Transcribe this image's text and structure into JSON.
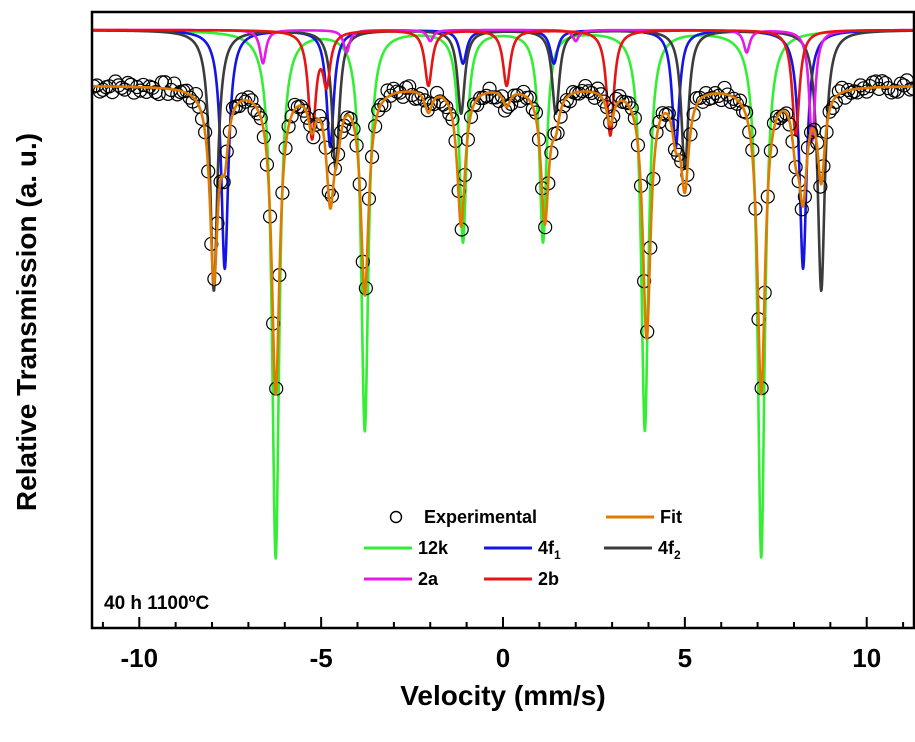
{
  "chart_data": {
    "type": "line",
    "xlabel": "Velocity (mm/s)",
    "ylabel": "Relative Transmission (a. u.)",
    "xlim": [
      -11.3,
      11.3
    ],
    "ylim": [
      0.0,
      1.0
    ],
    "x_ticks": [
      -10,
      -5,
      0,
      5,
      10
    ],
    "x_tick_labels": [
      "-10",
      "-5",
      "0",
      "5",
      "10"
    ],
    "y_ticks_labeled": false,
    "grid": false,
    "legend_position": "bottom-center",
    "annotation": "40 h  1100ºC",
    "series": [
      {
        "name": "Experimental",
        "style": "open-circle-markers",
        "color": "#000000",
        "baseline": 0.9,
        "noise": 0.012,
        "peaks": [
          {
            "x": -7.95,
            "depth": 0.34,
            "w": 0.13
          },
          {
            "x": -7.65,
            "depth": 0.1,
            "w": 0.12
          },
          {
            "x": -6.25,
            "depth": 0.55,
            "w": 0.13
          },
          {
            "x": -5.25,
            "depth": 0.06,
            "w": 0.12
          },
          {
            "x": -4.75,
            "depth": 0.19,
            "w": 0.13
          },
          {
            "x": -4.55,
            "depth": 0.06,
            "w": 0.12
          },
          {
            "x": -3.8,
            "depth": 0.37,
            "w": 0.13
          },
          {
            "x": -2.05,
            "depth": 0.04,
            "w": 0.12
          },
          {
            "x": -1.15,
            "depth": 0.25,
            "w": 0.13
          },
          {
            "x": 0.1,
            "depth": 0.03,
            "w": 0.12
          },
          {
            "x": 1.15,
            "depth": 0.24,
            "w": 0.13
          },
          {
            "x": 1.45,
            "depth": 0.05,
            "w": 0.12
          },
          {
            "x": 2.95,
            "depth": 0.06,
            "w": 0.12
          },
          {
            "x": 3.95,
            "depth": 0.45,
            "w": 0.13
          },
          {
            "x": 4.75,
            "depth": 0.07,
            "w": 0.12
          },
          {
            "x": 5.0,
            "depth": 0.17,
            "w": 0.13
          },
          {
            "x": 7.1,
            "depth": 0.55,
            "w": 0.13
          },
          {
            "x": 8.05,
            "depth": 0.08,
            "w": 0.12
          },
          {
            "x": 8.25,
            "depth": 0.18,
            "w": 0.13
          },
          {
            "x": 8.75,
            "depth": 0.16,
            "w": 0.12
          }
        ]
      },
      {
        "name": "Fit",
        "style": "line",
        "color": "#E07B00",
        "baseline": 0.9,
        "peaks": [
          {
            "x": -7.95,
            "depth": 0.34,
            "w": 0.13
          },
          {
            "x": -7.65,
            "depth": 0.1,
            "w": 0.12
          },
          {
            "x": -6.25,
            "depth": 0.55,
            "w": 0.13
          },
          {
            "x": -5.25,
            "depth": 0.06,
            "w": 0.12
          },
          {
            "x": -4.75,
            "depth": 0.19,
            "w": 0.13
          },
          {
            "x": -4.55,
            "depth": 0.06,
            "w": 0.12
          },
          {
            "x": -3.8,
            "depth": 0.37,
            "w": 0.13
          },
          {
            "x": -2.05,
            "depth": 0.04,
            "w": 0.12
          },
          {
            "x": -1.15,
            "depth": 0.25,
            "w": 0.13
          },
          {
            "x": 0.1,
            "depth": 0.03,
            "w": 0.12
          },
          {
            "x": 1.15,
            "depth": 0.24,
            "w": 0.13
          },
          {
            "x": 1.45,
            "depth": 0.05,
            "w": 0.12
          },
          {
            "x": 2.95,
            "depth": 0.06,
            "w": 0.12
          },
          {
            "x": 3.95,
            "depth": 0.45,
            "w": 0.13
          },
          {
            "x": 4.75,
            "depth": 0.07,
            "w": 0.12
          },
          {
            "x": 5.0,
            "depth": 0.17,
            "w": 0.13
          },
          {
            "x": 7.1,
            "depth": 0.55,
            "w": 0.13
          },
          {
            "x": 8.05,
            "depth": 0.08,
            "w": 0.12
          },
          {
            "x": 8.25,
            "depth": 0.18,
            "w": 0.13
          },
          {
            "x": 8.75,
            "depth": 0.16,
            "w": 0.12
          }
        ]
      },
      {
        "name": "12k",
        "style": "line",
        "color": "#33EE33",
        "baseline": 1.0,
        "peaks": [
          {
            "x": -6.25,
            "depth": 0.95,
            "w": 0.12
          },
          {
            "x": -3.8,
            "depth": 0.72,
            "w": 0.12
          },
          {
            "x": -1.1,
            "depth": 0.38,
            "w": 0.12
          },
          {
            "x": 1.1,
            "depth": 0.38,
            "w": 0.12
          },
          {
            "x": 3.9,
            "depth": 0.72,
            "w": 0.12
          },
          {
            "x": 7.1,
            "depth": 0.95,
            "w": 0.12
          }
        ]
      },
      {
        "name": "4f1",
        "label_main": "4f",
        "label_sub": "1",
        "style": "line",
        "color": "#1414E6",
        "baseline": 1.0,
        "peaks": [
          {
            "x": -7.65,
            "depth": 0.43,
            "w": 0.12
          },
          {
            "x": -4.75,
            "depth": 0.21,
            "w": 0.12
          },
          {
            "x": -1.1,
            "depth": 0.06,
            "w": 0.12
          },
          {
            "x": 1.4,
            "depth": 0.06,
            "w": 0.12
          },
          {
            "x": 4.75,
            "depth": 0.21,
            "w": 0.12
          },
          {
            "x": 8.25,
            "depth": 0.43,
            "w": 0.12
          }
        ]
      },
      {
        "name": "4f2",
        "label_main": "4f",
        "label_sub": "2",
        "style": "line",
        "color": "#3C3C3C",
        "baseline": 1.0,
        "peaks": [
          {
            "x": -7.95,
            "depth": 0.47,
            "w": 0.12
          },
          {
            "x": -4.6,
            "depth": 0.25,
            "w": 0.12
          },
          {
            "x": -1.15,
            "depth": 0.15,
            "w": 0.12
          },
          {
            "x": 1.45,
            "depth": 0.15,
            "w": 0.12
          },
          {
            "x": 5.0,
            "depth": 0.25,
            "w": 0.12
          },
          {
            "x": 8.75,
            "depth": 0.47,
            "w": 0.12
          }
        ]
      },
      {
        "name": "2a",
        "style": "line",
        "color": "#E619E6",
        "baseline": 1.0,
        "peaks": [
          {
            "x": -6.6,
            "depth": 0.06,
            "w": 0.1
          },
          {
            "x": -4.3,
            "depth": 0.04,
            "w": 0.1
          },
          {
            "x": -2.0,
            "depth": 0.02,
            "w": 0.1
          },
          {
            "x": 2.0,
            "depth": 0.02,
            "w": 0.1
          },
          {
            "x": 6.7,
            "depth": 0.04,
            "w": 0.1
          },
          {
            "x": 8.5,
            "depth": 0.2,
            "w": 0.1
          }
        ]
      },
      {
        "name": "2b",
        "style": "line",
        "color": "#E61414",
        "baseline": 1.0,
        "peaks": [
          {
            "x": -5.25,
            "depth": 0.19,
            "w": 0.12
          },
          {
            "x": -4.85,
            "depth": 0.09,
            "w": 0.12
          },
          {
            "x": -2.05,
            "depth": 0.1,
            "w": 0.12
          },
          {
            "x": 0.1,
            "depth": 0.1,
            "w": 0.12
          },
          {
            "x": 2.95,
            "depth": 0.19,
            "w": 0.12
          },
          {
            "x": 8.05,
            "depth": 0.19,
            "w": 0.12
          }
        ]
      }
    ]
  }
}
